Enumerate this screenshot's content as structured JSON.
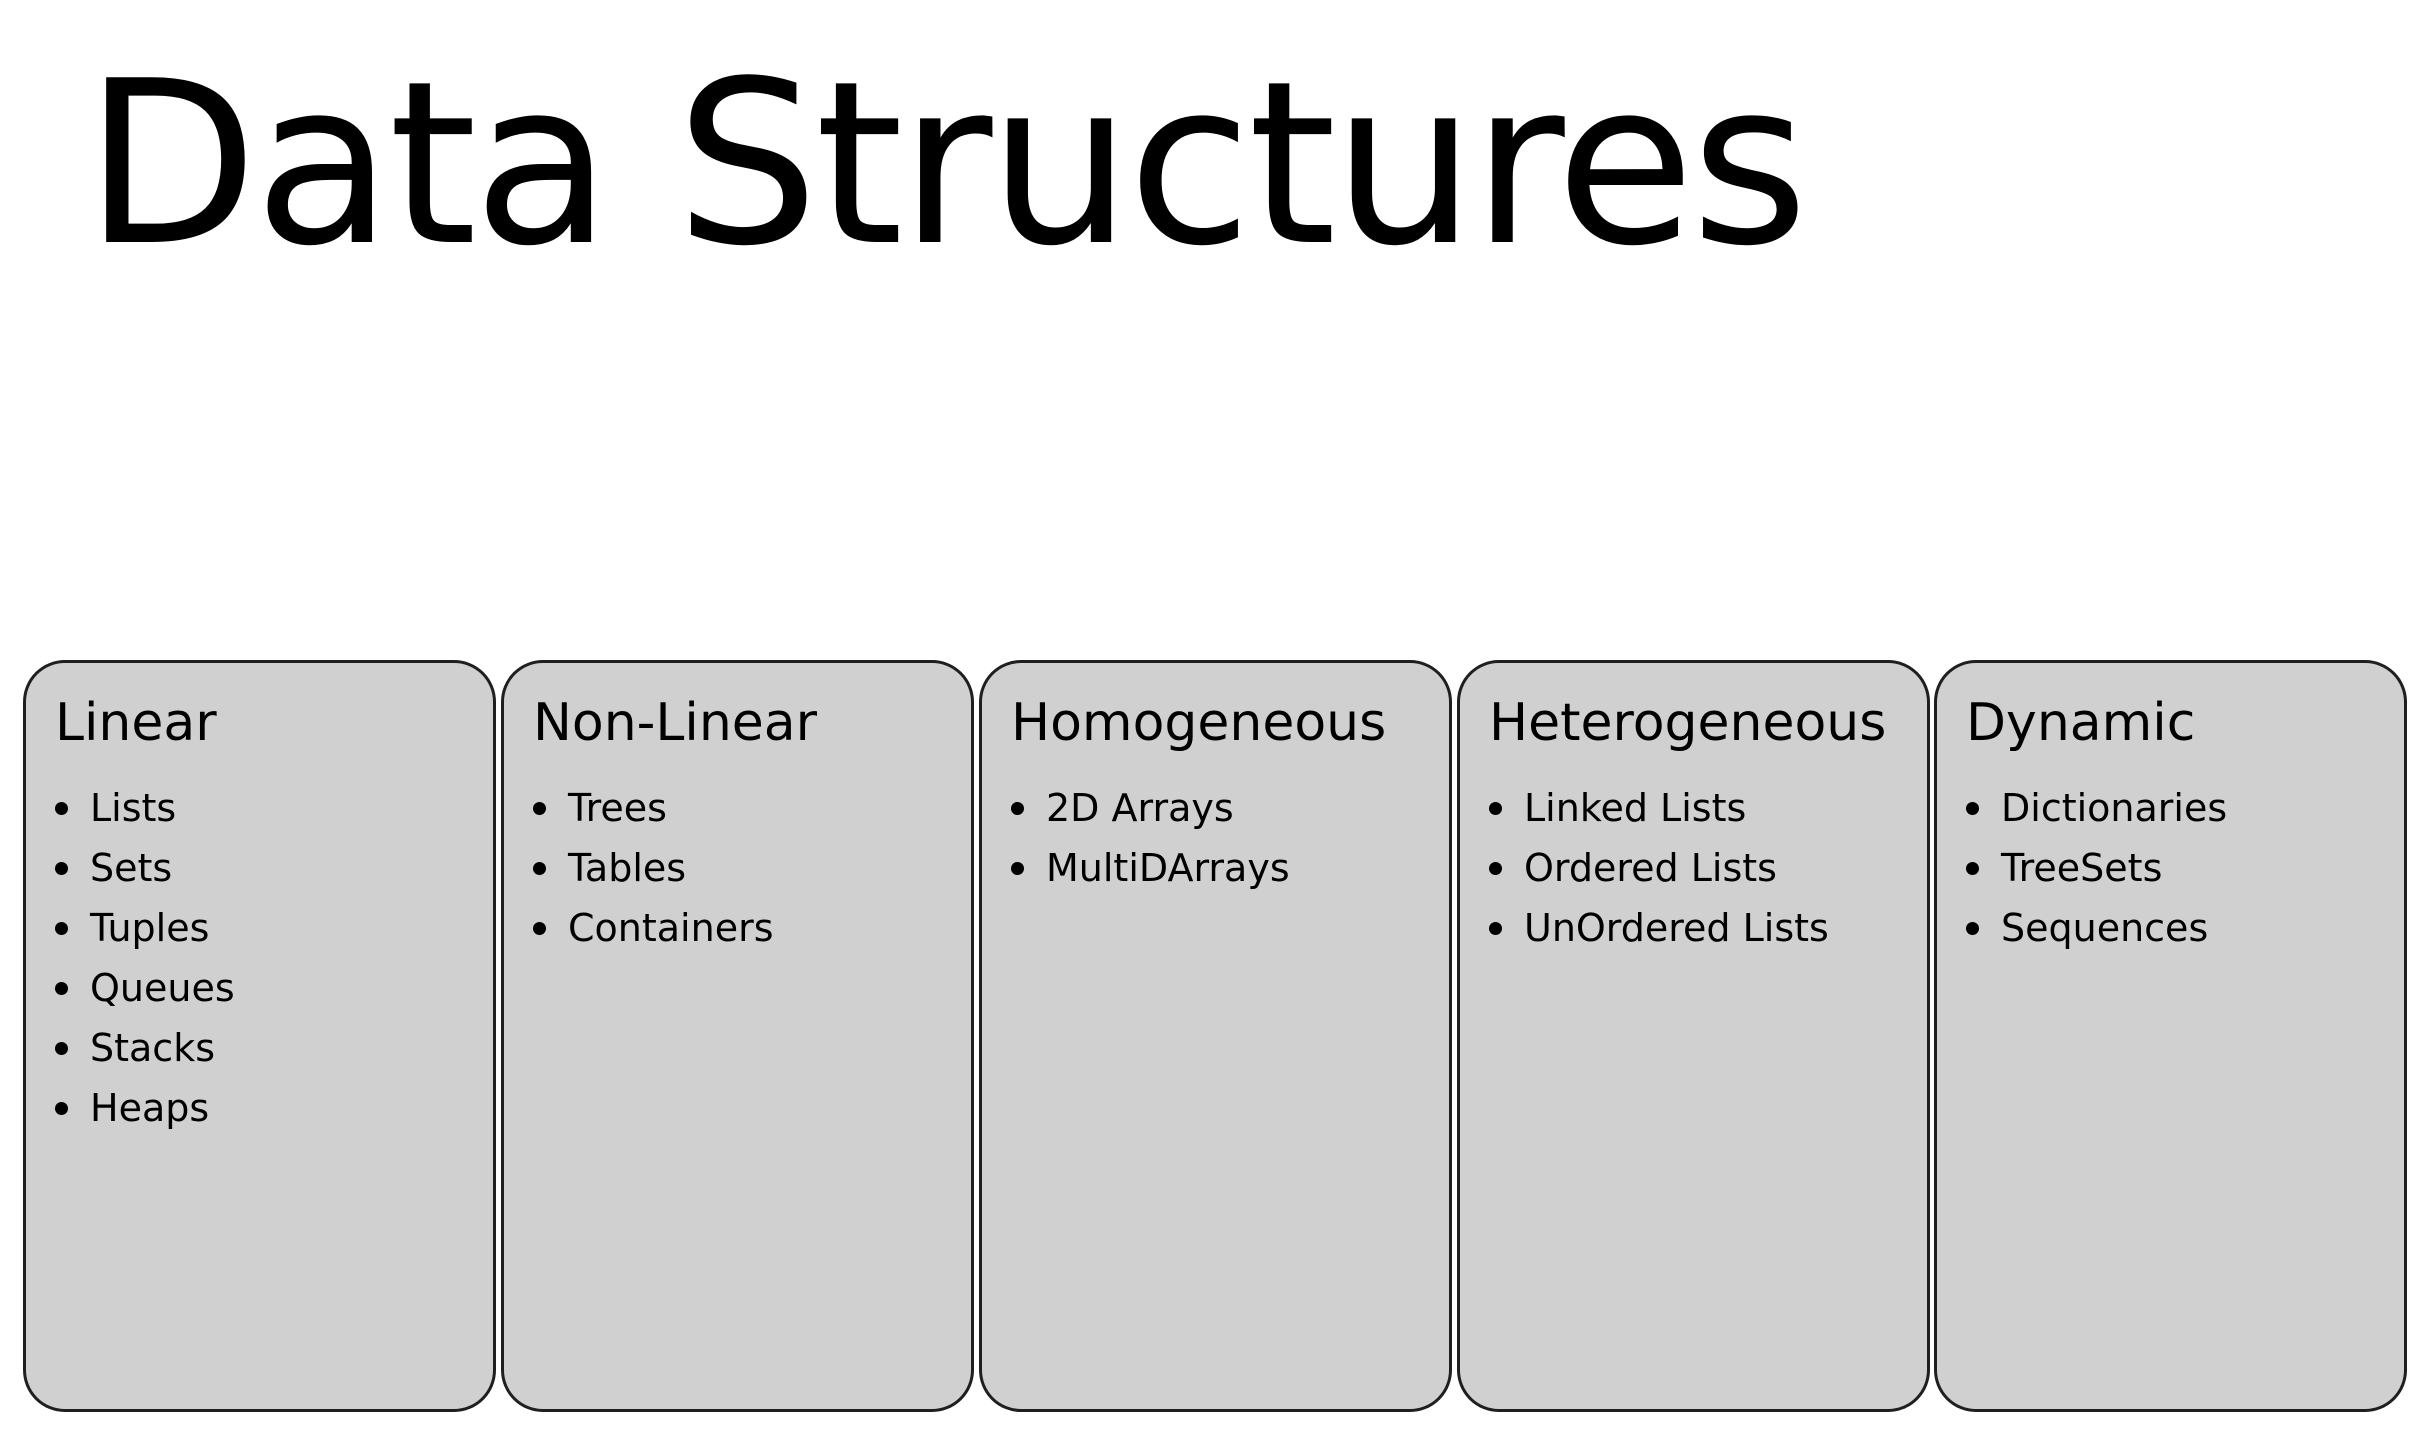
{
  "title": "Data Structures",
  "categories": [
    {
      "name": "Linear",
      "items": [
        "Lists",
        "Sets",
        "Tuples",
        "Queues",
        "Stacks",
        "Heaps"
      ]
    },
    {
      "name": "Non-Linear",
      "items": [
        "Trees",
        "Tables",
        "Containers"
      ]
    },
    {
      "name": "Homogeneous",
      "items": [
        "2D Arrays",
        "MultiDArrays"
      ]
    },
    {
      "name": "Heterogeneous",
      "items": [
        "Linked Lists",
        "Ordered Lists",
        "UnOrdered Lists"
      ]
    },
    {
      "name": "Dynamic",
      "items": [
        "Dictionaries",
        "TreeSets",
        "Sequences"
      ]
    }
  ]
}
